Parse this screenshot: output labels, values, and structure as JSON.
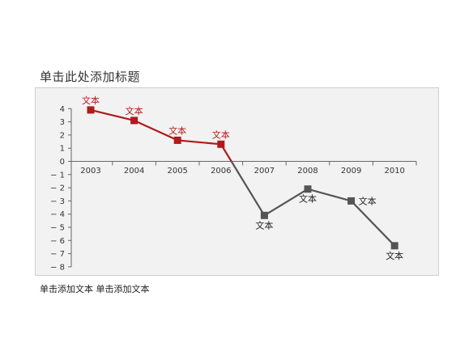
{
  "title": "单击此处添加标题",
  "footnote": "单击添加文本 单击添加文本",
  "colors": {
    "positive": "#b01a1a",
    "negative": "#555555",
    "axis": "#666666",
    "plot_bg": "#f2f2f2"
  },
  "chart_data": {
    "type": "line",
    "categories": [
      "2003",
      "2004",
      "2005",
      "2006",
      "2007",
      "2008",
      "2009",
      "2010"
    ],
    "values": [
      3.9,
      3.1,
      1.6,
      1.3,
      -4.1,
      -2.1,
      -3.0,
      -6.4
    ],
    "point_labels": [
      "文本",
      "文本",
      "文本",
      "文本",
      "文本",
      "文本",
      "文本",
      "文本"
    ],
    "ylim": [
      -8,
      4
    ],
    "yticks": [
      4,
      3,
      2,
      1,
      0,
      -1,
      -2,
      -3,
      -4,
      -5,
      -6,
      -7,
      -8
    ],
    "title": "单击此处添加标题",
    "xlabel": "",
    "ylabel": "",
    "grid": false,
    "legend": "none"
  }
}
